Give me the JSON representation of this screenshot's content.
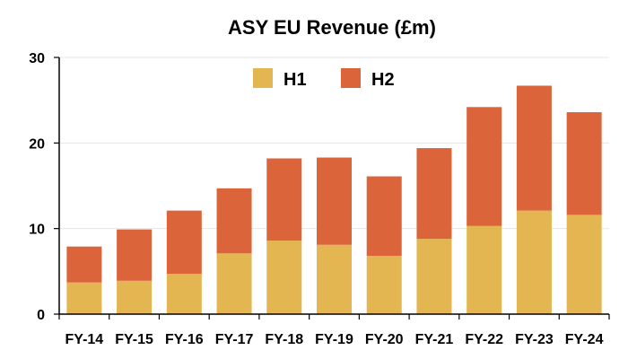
{
  "chart_data": {
    "type": "bar",
    "stacked": true,
    "title": "ASY EU Revenue (£m)",
    "categories": [
      "FY-14",
      "FY-15",
      "FY-16",
      "FY-17",
      "FY-18",
      "FY-19",
      "FY-20",
      "FY-21",
      "FY-22",
      "FY-23",
      "FY-24"
    ],
    "series": [
      {
        "name": "H1",
        "color": "#E4B651",
        "values": [
          3.7,
          3.9,
          4.7,
          7.1,
          8.6,
          8.1,
          6.8,
          8.8,
          10.3,
          12.1,
          11.6
        ]
      },
      {
        "name": "H2",
        "color": "#DC643B",
        "values": [
          4.2,
          6.0,
          7.4,
          7.6,
          9.6,
          10.2,
          9.3,
          10.6,
          13.9,
          14.6,
          12.0
        ]
      }
    ],
    "ylim": [
      0,
      30
    ],
    "yticks": [
      "0",
      "10",
      "20",
      "30"
    ],
    "grid": true,
    "legend_position": "top-center"
  }
}
